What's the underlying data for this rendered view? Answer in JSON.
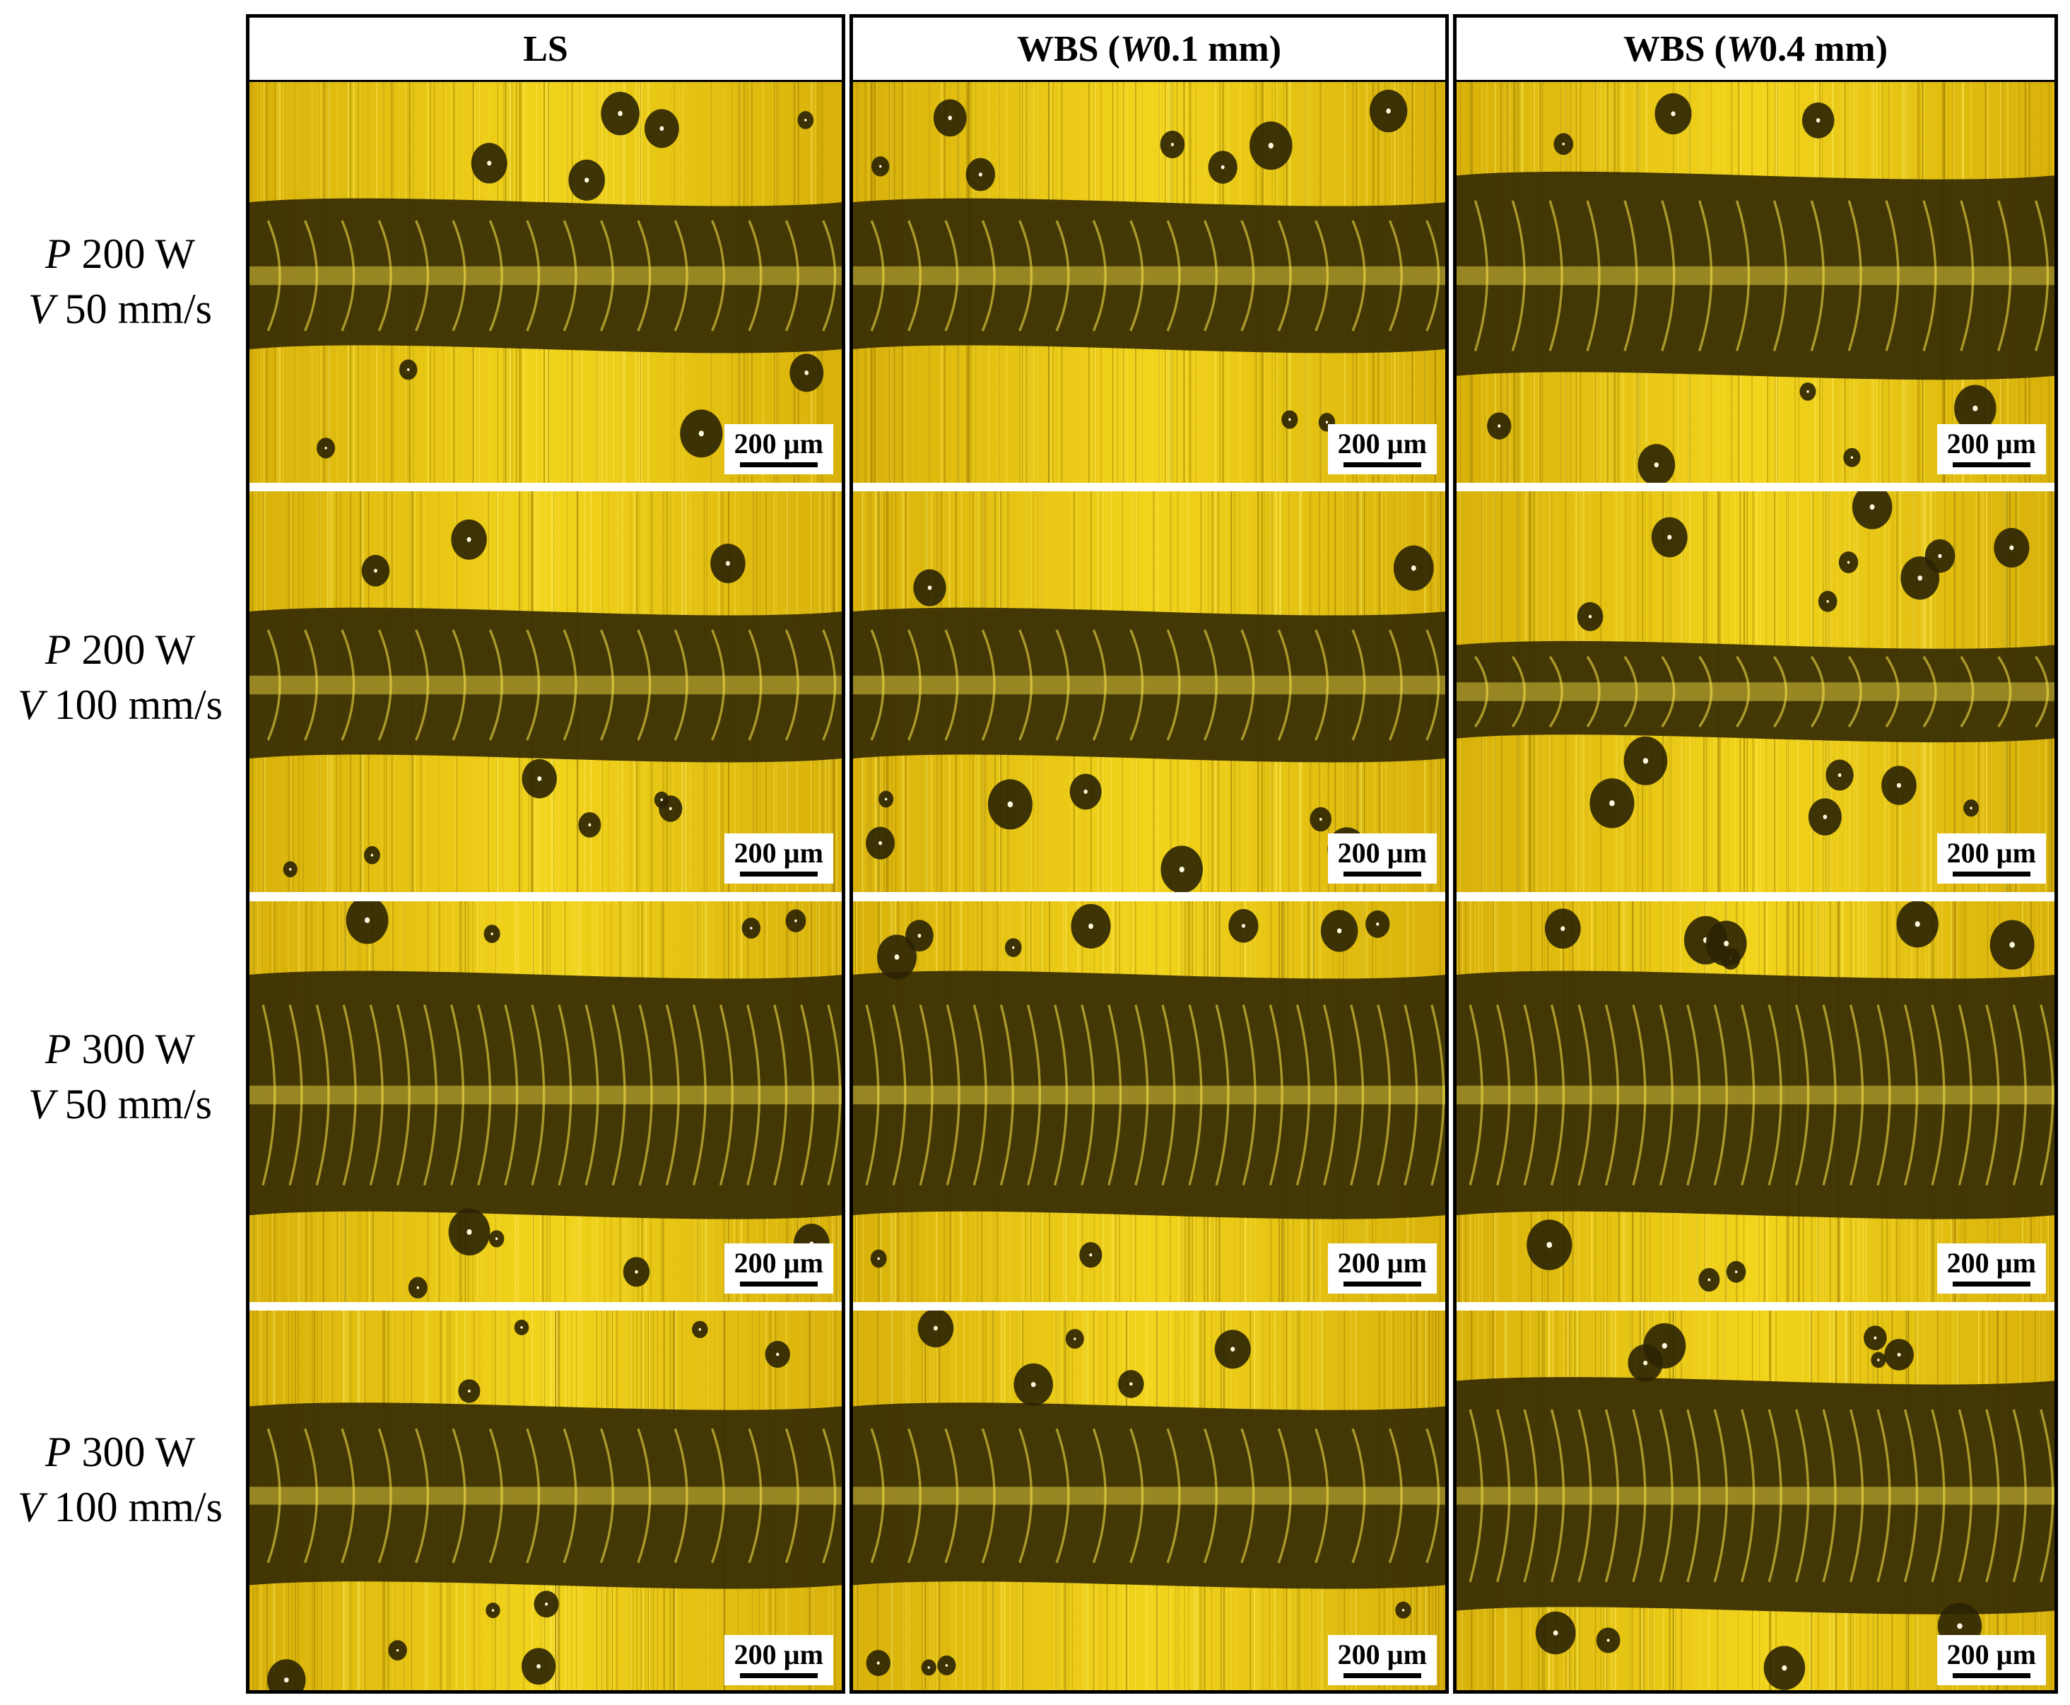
{
  "figure": {
    "columns": [
      {
        "label_main": "LS",
        "label_prefix": "",
        "label_italic": "",
        "label_suffix": ""
      },
      {
        "label_main": "",
        "label_prefix": "WBS (",
        "label_italic": "W",
        "label_suffix": " 0.1 mm)"
      },
      {
        "label_main": "",
        "label_prefix": "WBS (",
        "label_italic": "W",
        "label_suffix": " 0.4 mm)"
      }
    ],
    "rows": [
      {
        "p_symbol": "P",
        "p_value": " 200 W",
        "v_symbol": "V",
        "v_value": " 50 mm/s"
      },
      {
        "p_symbol": "P",
        "p_value": " 200 W",
        "v_symbol": "V",
        "v_value": " 100 mm/s"
      },
      {
        "p_symbol": "P",
        "p_value": " 300 W",
        "v_symbol": "V",
        "v_value": " 50 mm/s"
      },
      {
        "p_symbol": "P",
        "p_value": " 300 W",
        "v_symbol": "V",
        "v_value": " 100 mm/s"
      }
    ],
    "scalebar_label": "200 µm",
    "colors": {
      "substrate": "#d8b10a",
      "substrate_light": "#f2d41c",
      "track_dark": "#3a2f04",
      "track_highlight": "#ffe94a",
      "border": "#000000"
    }
  }
}
